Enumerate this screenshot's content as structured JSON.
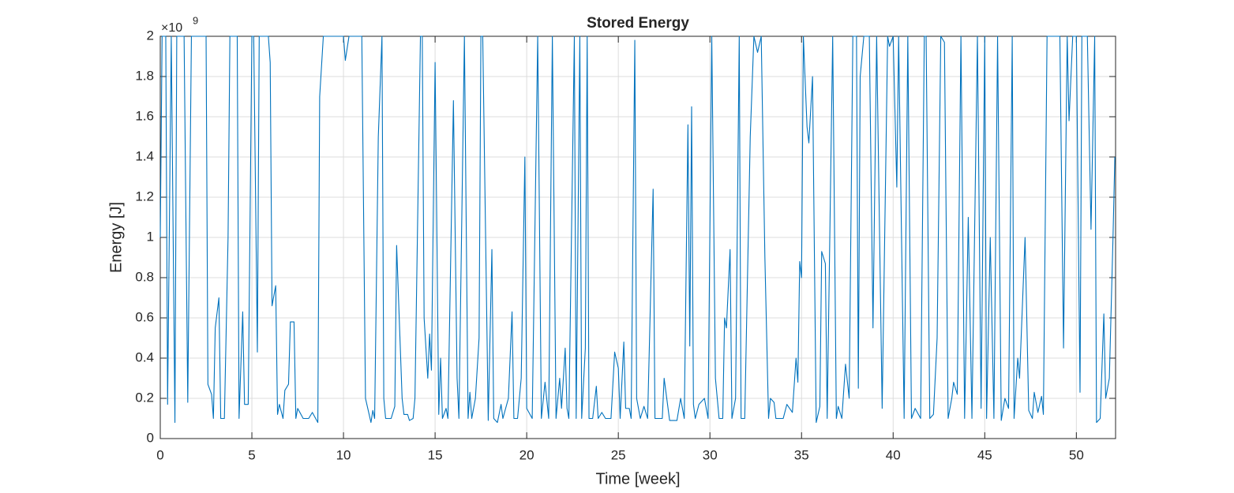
{
  "chart_data": {
    "type": "line",
    "title": "Stored Energy",
    "x_label": "Time [week]",
    "y_label": "Energy [J]",
    "y_multiplier_base": "×10",
    "y_multiplier_exponent": "9",
    "xlim": [
      0,
      52.14
    ],
    "xticks": [
      0,
      5,
      10,
      15,
      20,
      25,
      30,
      35,
      40,
      45,
      50
    ],
    "ylim": [
      0,
      2
    ],
    "yticks": [
      0,
      0.2,
      0.4,
      0.6,
      0.8,
      1,
      1.2,
      1.4,
      1.6,
      1.8,
      2
    ],
    "grid": true,
    "series": [
      {
        "color": "#0072bd",
        "x": [
          0,
          0.1,
          0.3,
          0.4,
          0.6,
          0.8,
          0.9,
          1.3,
          1.5,
          1.7,
          2.5,
          2.6,
          2.8,
          2.9,
          3.0,
          3.2,
          3.3,
          3.5,
          3.7,
          3.8,
          4.2,
          4.3,
          4.5,
          4.6,
          4.8,
          5.0,
          5.1,
          5.3,
          5.4,
          5.9,
          6.0,
          6.1,
          6.3,
          6.4,
          6.5,
          6.7,
          6.8,
          7.0,
          7.1,
          7.3,
          7.4,
          7.5,
          7.8,
          8.1,
          8.3,
          8.6,
          8.7,
          8.9,
          10.0,
          10.1,
          10.3,
          11.0,
          11.2,
          11.5,
          11.6,
          11.7,
          11.9,
          12.1,
          12.2,
          12.3,
          12.6,
          12.8,
          12.9,
          13.2,
          13.3,
          13.5,
          13.6,
          13.8,
          13.9,
          14.2,
          14.3,
          14.4,
          14.6,
          14.7,
          14.8,
          15.0,
          15.2,
          15.3,
          15.4,
          15.6,
          15.7,
          16.0,
          16.2,
          16.3,
          16.6,
          16.8,
          16.9,
          17.0,
          17.2,
          17.4,
          17.5,
          17.6,
          17.9,
          18.1,
          18.2,
          18.4,
          18.6,
          18.7,
          19.0,
          19.2,
          19.3,
          19.5,
          19.7,
          19.9,
          20.0,
          20.3,
          20.6,
          20.8,
          21.0,
          21.2,
          21.4,
          21.6,
          21.8,
          21.9,
          22.1,
          22.2,
          22.3,
          22.6,
          22.7,
          22.9,
          23.0,
          23.2,
          23.3,
          23.4,
          23.6,
          23.8,
          23.9,
          24.1,
          24.3,
          24.6,
          24.8,
          25.0,
          25.1,
          25.3,
          25.4,
          25.6,
          25.7,
          25.9,
          26.0,
          26.2,
          26.4,
          26.6,
          26.9,
          27.0,
          27.4,
          27.5,
          27.8,
          28.2,
          28.4,
          28.6,
          28.8,
          28.9,
          29.0,
          29.1,
          29.2,
          29.4,
          29.7,
          29.9,
          30.1,
          30.3,
          30.5,
          30.7,
          30.8,
          30.9,
          31.1,
          31.2,
          31.4,
          31.6,
          31.7,
          31.9,
          32.2,
          32.4,
          32.6,
          32.8,
          33.0,
          33.2,
          33.3,
          33.5,
          33.6,
          34.0,
          34.2,
          34.5,
          34.7,
          34.8,
          34.9,
          35.0,
          35.1,
          35.3,
          35.4,
          35.6,
          35.8,
          36.0,
          36.1,
          36.3,
          36.4,
          36.7,
          36.9,
          37.0,
          37.2,
          37.4,
          37.6,
          37.8,
          38.0,
          38.1,
          38.2,
          38.4,
          38.7,
          38.9,
          39.1,
          39.4,
          39.7,
          39.8,
          40.0,
          40.2,
          40.3,
          40.6,
          40.8,
          41.0,
          41.2,
          41.5,
          41.7,
          41.8,
          42.0,
          42.2,
          42.4,
          42.6,
          42.8,
          43.0,
          43.2,
          43.3,
          43.5,
          43.7,
          43.9,
          44.1,
          44.3,
          44.6,
          44.8,
          45.0,
          45.1,
          45.3,
          45.5,
          45.7,
          45.9,
          46.1,
          46.3,
          46.5,
          46.6,
          46.8,
          46.9,
          47.2,
          47.4,
          47.6,
          47.7,
          47.9,
          48.1,
          48.2,
          48.4,
          49.0,
          49.1,
          49.3,
          49.5,
          49.6,
          49.8,
          50.0,
          50.2,
          50.3,
          50.6,
          50.8,
          51.0,
          51.1,
          51.3,
          51.5,
          51.6,
          51.8,
          52.0,
          52.1
        ],
        "values": [
          1.0,
          2,
          2,
          0.17,
          2,
          0.08,
          2,
          2,
          0.18,
          2,
          2,
          0.27,
          0.22,
          0.1,
          0.55,
          0.7,
          0.1,
          0.1,
          1.0,
          2,
          2,
          0.1,
          0.63,
          0.17,
          0.17,
          2,
          2,
          0.43,
          2,
          2,
          1.87,
          0.66,
          0.76,
          0.12,
          0.17,
          0.1,
          0.24,
          0.27,
          0.58,
          0.58,
          0.1,
          0.15,
          0.1,
          0.1,
          0.13,
          0.08,
          1.7,
          2,
          2,
          1.88,
          2,
          2,
          0.2,
          0.08,
          0.14,
          0.1,
          1.5,
          2,
          0.2,
          0.1,
          0.1,
          0.16,
          0.96,
          0.2,
          0.12,
          0.12,
          0.09,
          0.1,
          0.2,
          2,
          2,
          0.6,
          0.3,
          0.52,
          0.34,
          1.87,
          0.12,
          0.4,
          0.1,
          0.15,
          0.1,
          1.68,
          0.3,
          0.1,
          2,
          0.1,
          0.23,
          0.1,
          0.2,
          0.5,
          2,
          2,
          0.09,
          0.94,
          0.1,
          0.08,
          0.17,
          0.1,
          0.2,
          0.63,
          0.1,
          0.1,
          0.3,
          1.4,
          0.15,
          0.1,
          2,
          0.1,
          0.28,
          0.1,
          2,
          0.1,
          0.3,
          0.15,
          0.45,
          0.15,
          0.1,
          2,
          0.1,
          2,
          0.1,
          0.45,
          2,
          0.1,
          0.1,
          0.26,
          0.1,
          0.13,
          0.1,
          0.1,
          0.43,
          0.35,
          0.1,
          0.48,
          0.15,
          0.15,
          0.1,
          1.98,
          0.2,
          0.1,
          0.16,
          0.1,
          1.24,
          0.1,
          0.1,
          0.3,
          0.09,
          0.09,
          0.2,
          0.1,
          1.56,
          0.46,
          1.65,
          0.17,
          0.1,
          0.17,
          0.2,
          0.1,
          2,
          0.3,
          0.1,
          0.1,
          0.6,
          0.55,
          0.94,
          0.1,
          0.2,
          2,
          0.1,
          0.1,
          1.5,
          2,
          1.92,
          2,
          0.9,
          0.1,
          0.2,
          0.18,
          0.1,
          0.1,
          0.17,
          0.13,
          0.4,
          0.28,
          0.88,
          0.8,
          2,
          1.55,
          1.47,
          1.8,
          0.08,
          0.16,
          0.93,
          0.87,
          0.1,
          2,
          0.1,
          0.16,
          0.1,
          0.37,
          0.2,
          2,
          2,
          0.25,
          1.8,
          2,
          2,
          0.55,
          2,
          0.15,
          2,
          1.95,
          2,
          1.25,
          2,
          0.1,
          2,
          0.1,
          0.15,
          0.1,
          2,
          2,
          0.1,
          0.12,
          0.5,
          2,
          1.97,
          0.1,
          0.2,
          0.28,
          0.22,
          2,
          0.1,
          1.1,
          0.1,
          2,
          0.15,
          2,
          0.1,
          1.0,
          0.1,
          2,
          0.09,
          0.2,
          0.15,
          2,
          0.1,
          0.4,
          0.3,
          1.0,
          0.14,
          0.1,
          0.23,
          0.13,
          0.21,
          0.12,
          2,
          2,
          2,
          0.45,
          2,
          1.58,
          2,
          2,
          0.23,
          2,
          2,
          1.04,
          2,
          0.08,
          0.1,
          0.62,
          0.2,
          0.3,
          1.0,
          1.4
        ]
      }
    ]
  }
}
